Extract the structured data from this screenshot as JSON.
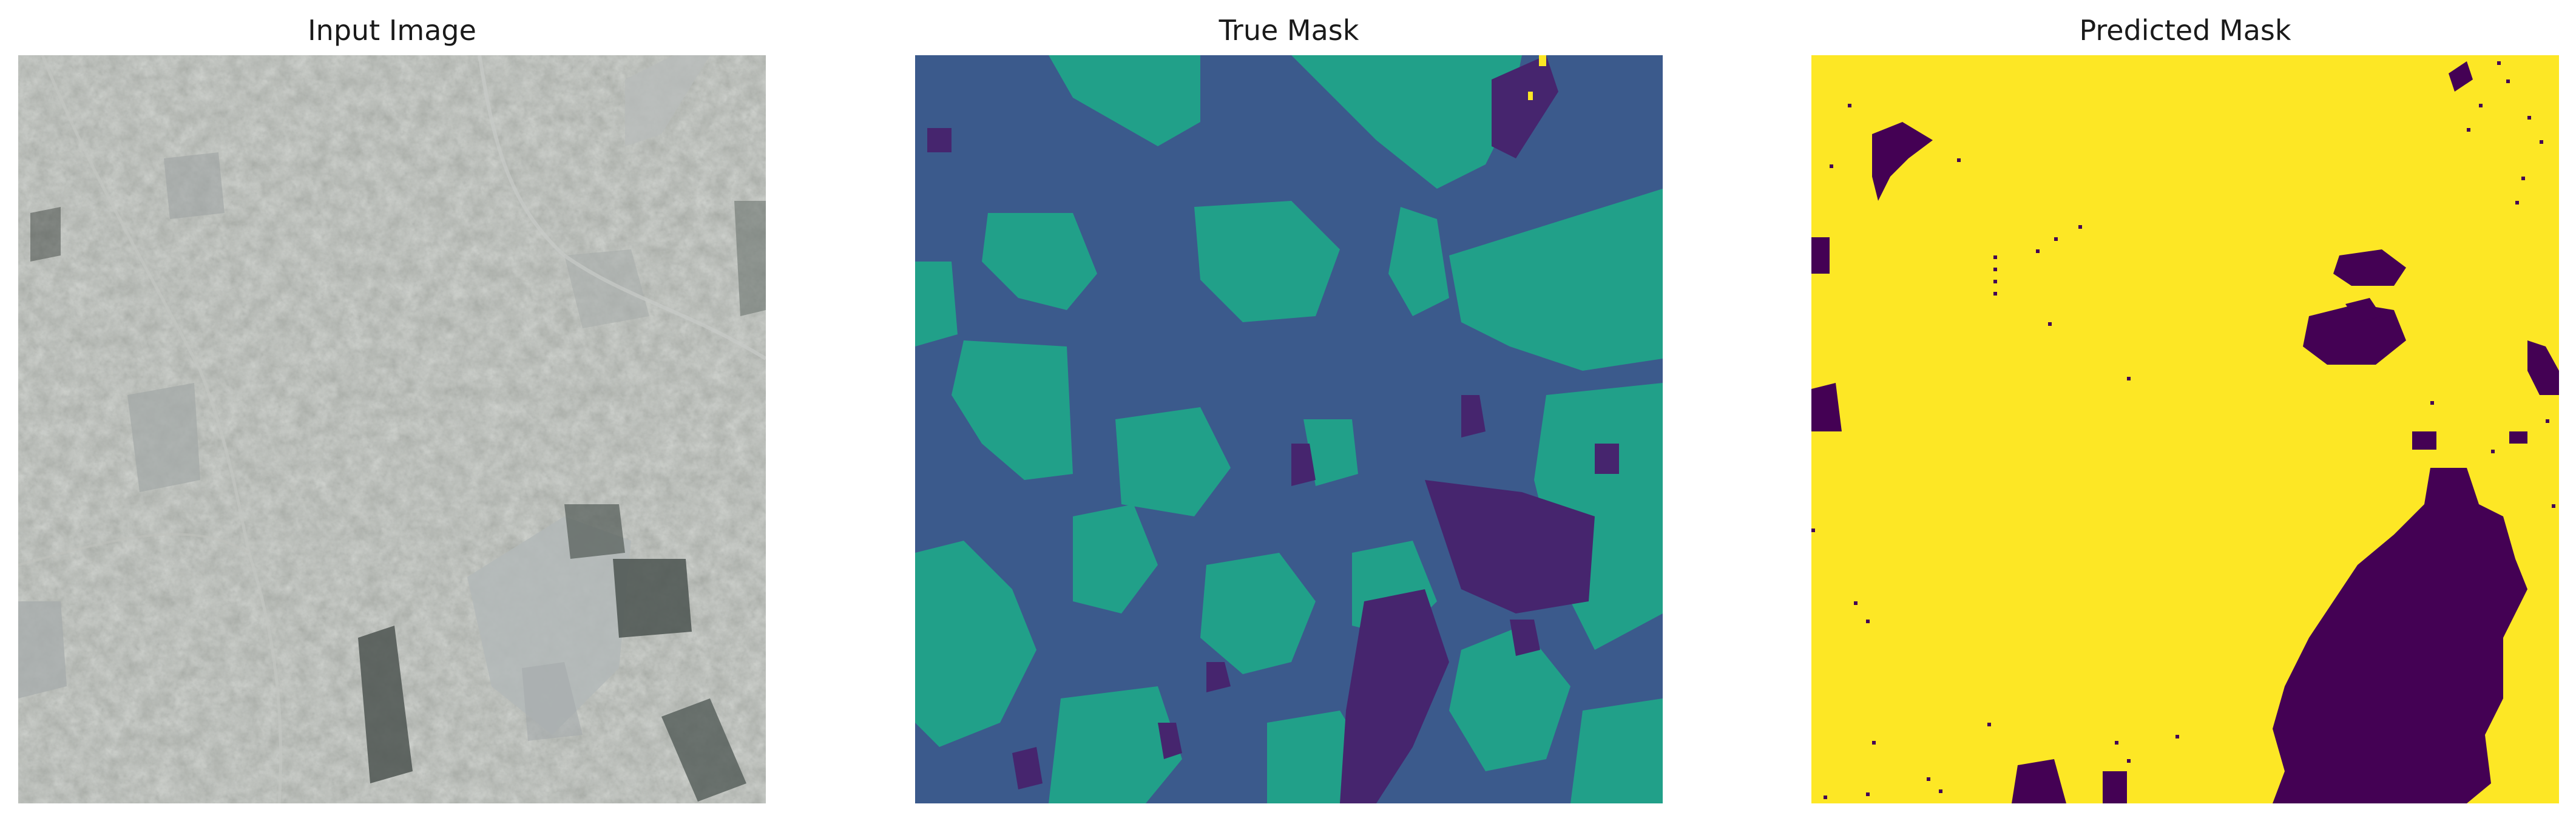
{
  "panels": [
    {
      "title": "Input Image"
    },
    {
      "title": "True Mask"
    },
    {
      "title": "Predicted Mask"
    }
  ],
  "colors": {
    "background": "#ffffff",
    "title_text": "#1a1a1a",
    "true_mask_dark_blue": "#3b5a8c",
    "true_mask_teal": "#21a089",
    "true_mask_purple": "#46256e",
    "true_mask_yellow": "#fde725",
    "pred_mask_yellow": "#fde725",
    "pred_mask_purple": "#440154",
    "input_grey": "#8a8e86"
  }
}
